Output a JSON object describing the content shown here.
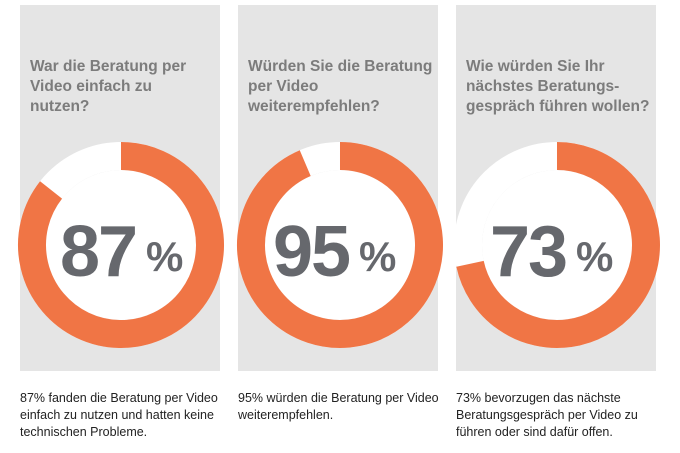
{
  "colors": {
    "accent": "#f07545",
    "panel": "#e5e5e5",
    "question_text": "#7c7c7c",
    "number_text": "#66686d"
  },
  "chart_data": [
    {
      "type": "pie",
      "title": "War die Beratung per Video einfach zu nutzen?",
      "value": 87,
      "display": "87",
      "unit": "%",
      "caption": "87% fanden die Beratung per Video einfach zu nutzen und hatten keine technischen Probleme."
    },
    {
      "type": "pie",
      "title": "Würden Sie die Beratung per Video weiterempfehlen?",
      "value": 95,
      "display": "95",
      "unit": "%",
      "caption": "95% würden die Beratung per Video weiterempfehlen."
    },
    {
      "type": "pie",
      "title": "Wie würden Sie Ihr nächstes Beratungs-gespräch führen wollen?",
      "value": 73,
      "display": "73",
      "unit": "%",
      "caption": "73% bevorzugen das nächste Beratungsgespräch per Video zu führen oder sind dafür offen."
    }
  ]
}
